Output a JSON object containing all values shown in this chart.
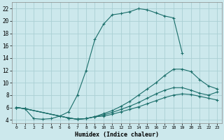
{
  "xlabel": "Humidex (Indice chaleur)",
  "bg_color": "#cce8ec",
  "grid_color": "#aacfd4",
  "line_color": "#1a6e6a",
  "xlim": [
    -0.5,
    23.5
  ],
  "ylim": [
    3.5,
    23
  ],
  "xticks": [
    0,
    1,
    2,
    3,
    4,
    5,
    6,
    7,
    8,
    9,
    10,
    11,
    12,
    13,
    14,
    15,
    16,
    17,
    18,
    19,
    20,
    21,
    22,
    23
  ],
  "yticks": [
    4,
    6,
    8,
    10,
    12,
    14,
    16,
    18,
    20,
    22
  ],
  "line1_x": [
    0,
    1,
    2,
    3,
    4,
    5,
    6,
    7,
    8,
    9,
    10,
    11,
    12,
    13,
    14,
    15,
    16,
    17,
    18,
    19
  ],
  "line1_y": [
    6.0,
    5.8,
    4.2,
    4.1,
    4.2,
    4.6,
    5.3,
    8.0,
    12.0,
    17.0,
    19.5,
    21.0,
    21.2,
    21.5,
    22.0,
    21.8,
    21.3,
    20.8,
    20.5,
    14.8
  ],
  "line2_x": [
    0,
    1,
    6,
    7,
    8,
    9,
    10,
    11,
    12,
    13,
    14,
    15,
    16,
    17,
    18,
    19,
    20,
    21,
    22,
    23
  ],
  "line2_y": [
    6.0,
    5.8,
    4.3,
    4.1,
    4.2,
    4.5,
    5.0,
    5.5,
    6.2,
    7.0,
    8.0,
    9.0,
    10.0,
    11.2,
    12.2,
    12.2,
    11.8,
    10.5,
    9.5,
    9.0
  ],
  "line3_x": [
    0,
    1,
    6,
    7,
    8,
    9,
    10,
    11,
    12,
    13,
    14,
    15,
    16,
    17,
    18,
    19,
    20,
    21,
    22,
    23
  ],
  "line3_y": [
    6.0,
    5.8,
    4.3,
    4.1,
    4.2,
    4.5,
    4.8,
    5.2,
    5.7,
    6.2,
    6.8,
    7.5,
    8.2,
    8.8,
    9.2,
    9.2,
    8.8,
    8.3,
    8.0,
    8.5
  ],
  "line4_x": [
    0,
    1,
    6,
    7,
    8,
    9,
    10,
    11,
    12,
    13,
    14,
    15,
    16,
    17,
    18,
    19,
    20,
    21,
    22,
    23
  ],
  "line4_y": [
    6.0,
    5.8,
    4.3,
    4.1,
    4.2,
    4.5,
    4.6,
    4.9,
    5.3,
    5.7,
    6.1,
    6.6,
    7.1,
    7.6,
    8.0,
    8.2,
    8.1,
    7.8,
    7.5,
    7.2
  ]
}
